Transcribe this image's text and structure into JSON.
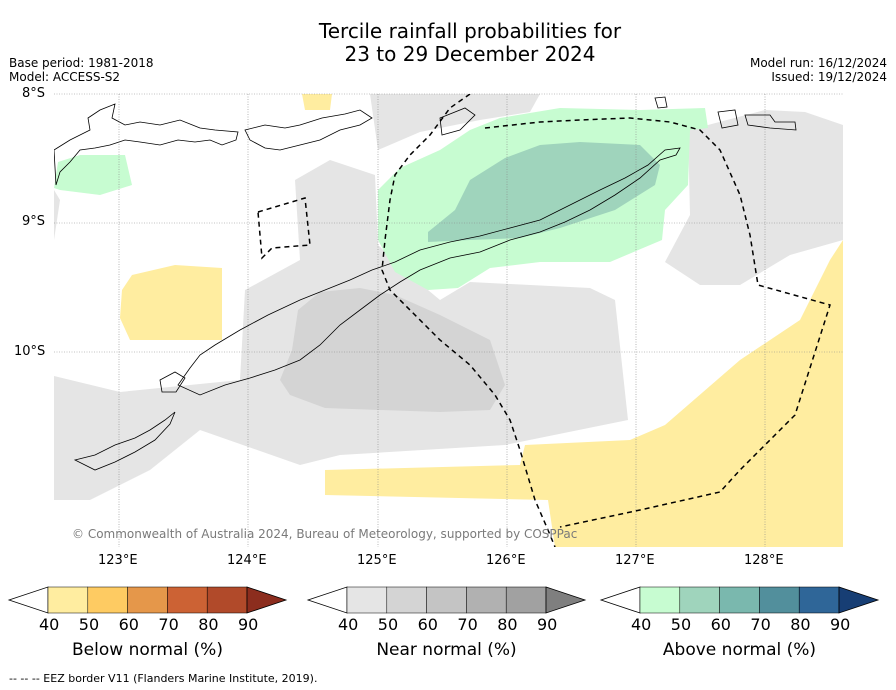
{
  "header": {
    "title_line1": "Tercile rainfall probabilities for",
    "title_line2": "23 to 29 December 2024",
    "base_period": "Base period: 1981-2018",
    "model": "Model: ACCESS-S2",
    "model_run": "Model run: 16/12/2024",
    "issued": "Issued: 19/12/2024"
  },
  "map": {
    "lat_labels": [
      "8°S",
      "9°S",
      "10°S"
    ],
    "lon_labels": [
      "123°E",
      "124°E",
      "125°E",
      "126°E",
      "127°E",
      "128°E"
    ],
    "attribution": "© Commonwealth of Australia 2024, Bureau of Meteorology, supported by COSPPac",
    "colors": {
      "below_50": "#ffeda0",
      "near_40": "#e5e5e5",
      "near_50": "#d4d4d4",
      "above_40": "#c7fcd1",
      "above_50": "#9fd4bc"
    }
  },
  "colorbars": [
    {
      "label": "Below normal (%)",
      "ticks": [
        "40",
        "50",
        "60",
        "70",
        "80",
        "90"
      ],
      "colors": [
        "#ffffff",
        "#ffeda0",
        "#fecb62",
        "#e5974a",
        "#cc6234",
        "#b14a2a",
        "#8c2d1e"
      ]
    },
    {
      "label": "Near normal (%)",
      "ticks": [
        "40",
        "50",
        "60",
        "70",
        "80",
        "90"
      ],
      "colors": [
        "#ffffff",
        "#e5e5e5",
        "#d4d4d4",
        "#c4c4c4",
        "#b1b1b1",
        "#a1a1a1",
        "#7f7f7f"
      ]
    },
    {
      "label": "Above normal (%)",
      "ticks": [
        "40",
        "50",
        "60",
        "70",
        "80",
        "90"
      ],
      "colors": [
        "#ffffff",
        "#c7fcd1",
        "#9fd4bc",
        "#7ab8ae",
        "#528f9c",
        "#2f6698",
        "#173e74"
      ]
    }
  ],
  "footnote": "-- -- -- EEZ border V11 (Flanders Marine Institute, 2019)."
}
